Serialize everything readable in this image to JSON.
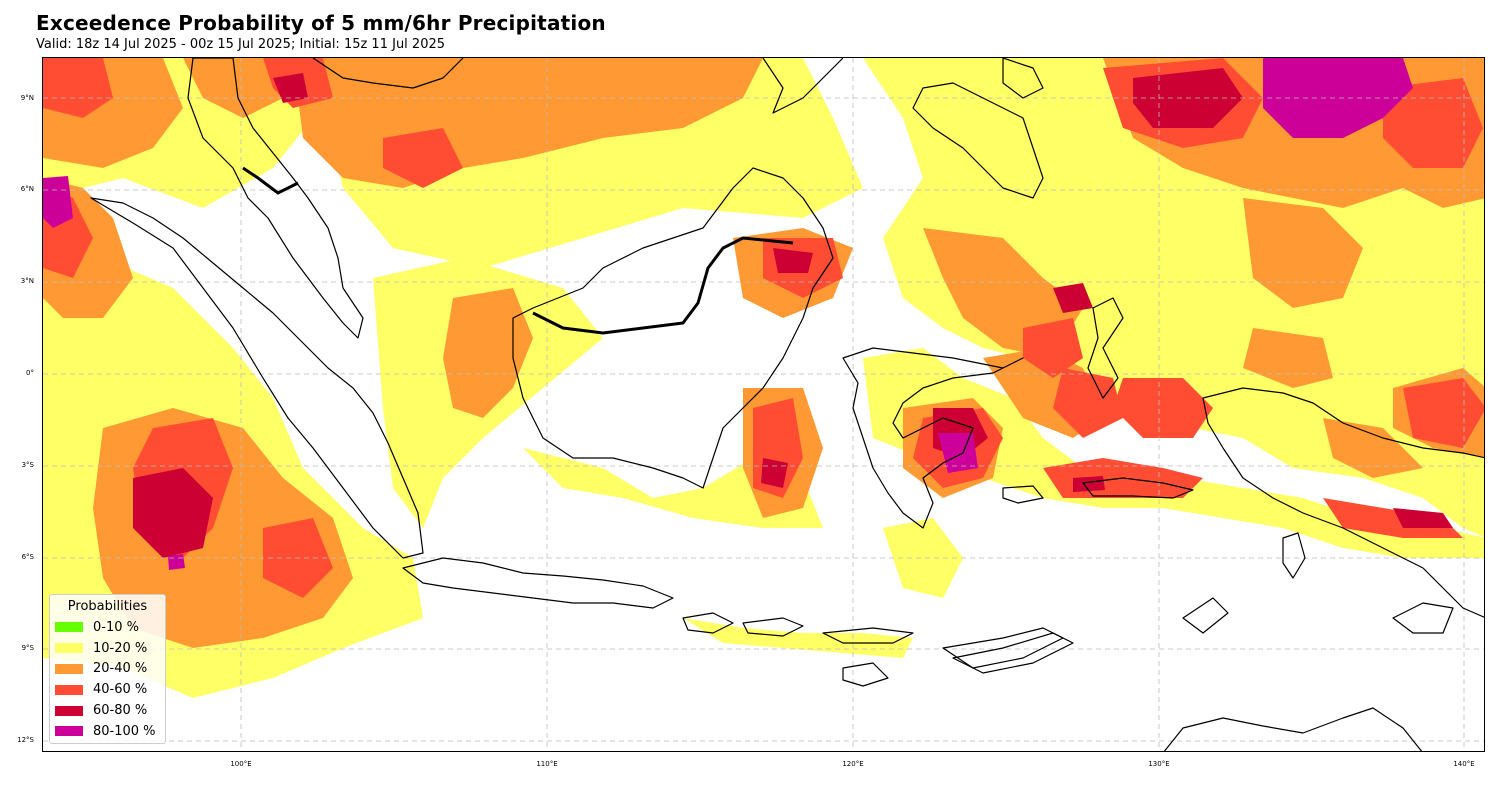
{
  "header": {
    "title": "Exceedence Probability of 5 mm/6hr Precipitation",
    "subtitle": "Valid: 18z 14 Jul 2025 - 00z 15 Jul 2025; Initial: 15z 11 Jul 2025"
  },
  "map": {
    "lon_range": [
      93.5,
      141
    ],
    "lat_range": [
      -12.5,
      10.4
    ],
    "lat_labels": [
      "9°N",
      "6°N",
      "3°N",
      "0°",
      "3°S",
      "6°S",
      "9°S",
      "12°S"
    ],
    "lon_labels": [
      "100°E",
      "110°E",
      "120°E",
      "130°E",
      "140°E"
    ],
    "gridlines": "dashed",
    "coastline_color": "#000000"
  },
  "legend": {
    "title": "Probabilities",
    "position": "lower-left",
    "items": [
      {
        "label": "0-10 %",
        "color": "#66ff00"
      },
      {
        "label": "10-20 %",
        "color": "#ffff66"
      },
      {
        "label": "20-40 %",
        "color": "#ff9933"
      },
      {
        "label": "40-60 %",
        "color": "#ff4d33"
      },
      {
        "label": "60-80 %",
        "color": "#cc0033"
      },
      {
        "label": "80-100 %",
        "color": "#cc0099"
      }
    ]
  }
}
